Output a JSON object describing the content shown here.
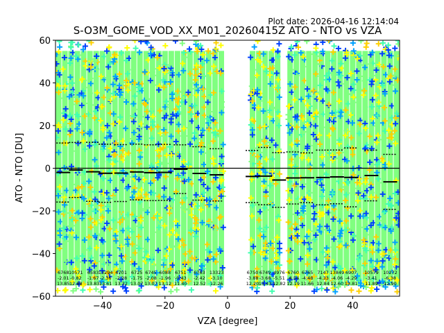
{
  "chart_data": {
    "type": "scatter",
    "title": "S-O3M_GOME_VOD_XX_M01_20260415Z ATO - NTO vs VZA",
    "plot_date": "Plot date: 2026-04-16 12:14:04",
    "xlabel": "VZA [degree]",
    "ylabel": "ATO - NTO [DU]",
    "xlim": [
      -55,
      55
    ],
    "ylim": [
      -60,
      60
    ],
    "xticks": [
      -40,
      -20,
      0,
      20,
      40
    ],
    "yticks": [
      -60,
      -40,
      -20,
      0,
      20,
      40,
      60
    ],
    "zero_line": 0,
    "marker": "+",
    "scatter_colors": [
      "#80ff80",
      "#ffff00",
      "#00a0ff",
      "#0040ff",
      "#40ffb0",
      "#ffd000"
    ],
    "bins": [
      {
        "vza": -52.5,
        "count": "6768",
        "mean": -2.01,
        "std": 13.85
      },
      {
        "vza": -48.5,
        "count": "10571",
        "mean": -0.82,
        "std": 12.88
      },
      {
        "vza": -43.0,
        "count": "6583",
        "mean": -1.67,
        "std": 13.83
      },
      {
        "vza": -39.0,
        "count": "13294",
        "mean": -2.36,
        "std": 13.61
      },
      {
        "vza": -34.0,
        "count": "6701",
        "mean": -2.28,
        "std": 13.32
      },
      {
        "vza": -29.0,
        "count": "6725",
        "mean": -1.75,
        "std": 13.07
      },
      {
        "vza": -24.5,
        "count": "6745",
        "mean": -2.08,
        "std": 13.07
      },
      {
        "vza": -20.0,
        "count": "6088",
        "mean": -1.96,
        "std": 13.12
      },
      {
        "vza": -15.0,
        "count": "6751",
        "mean": -0.43,
        "std": 11.4
      },
      {
        "vza": -9.0,
        "count": "6763",
        "mean": -2.42,
        "std": 12.52
      },
      {
        "vza": -3.5,
        "count": "13323",
        "mean": -3.1,
        "std": 12.26
      },
      {
        "vza": 8.0,
        "count": "6750",
        "mean": -3.88,
        "std": 12.2
      },
      {
        "vza": 12.0,
        "count": "6749",
        "mean": -3.68,
        "std": 13.43
      },
      {
        "vza": 16.5,
        "count": "4976",
        "mean": -5.51,
        "std": 12.82
      },
      {
        "vza": 21.0,
        "count": "6760",
        "mean": -4.54,
        "std": 12.19
      },
      {
        "vza": 25.5,
        "count": "6765",
        "mean": -4.48,
        "std": 11.66
      },
      {
        "vza": 30.5,
        "count": "7147",
        "mean": -4.33,
        "std": 12.84
      },
      {
        "vza": 35.0,
        "count": "13849",
        "mean": -4.06,
        "std": 12.6
      },
      {
        "vza": 39.5,
        "count": "6907",
        "mean": -4.29,
        "std": 13.81
      },
      {
        "vza": 46.0,
        "count": "10579",
        "mean": -3.41,
        "std": 11.89
      },
      {
        "vza": 52.0,
        "count": "10272",
        "mean": -6.38,
        "std": 12.9
      }
    ],
    "columns_vza": [
      -54,
      -52,
      -50,
      -48,
      -46,
      -44,
      -42,
      -40,
      -38,
      -36,
      -34,
      -32,
      -30,
      -28,
      -26,
      -24,
      -22,
      -20,
      -18,
      -16,
      -14,
      -12,
      -10,
      -8,
      -6,
      -4,
      -2,
      8,
      10,
      12,
      14,
      16,
      20,
      22,
      24,
      26,
      28,
      30,
      32,
      34,
      36,
      38,
      40,
      42,
      44,
      46,
      48,
      50,
      52,
      54
    ]
  }
}
